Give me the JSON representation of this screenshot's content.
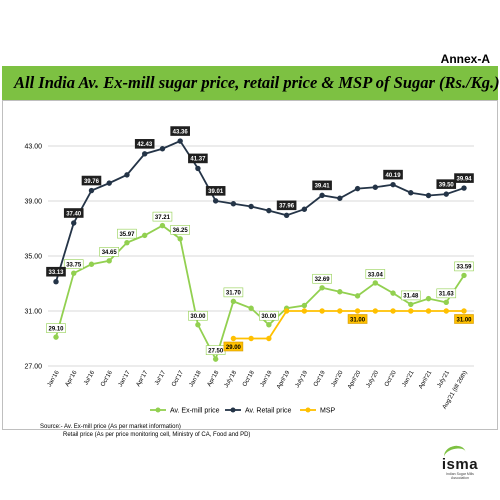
{
  "header": {
    "annex": "Annex-A",
    "title": "All India Av. Ex-mill sugar price, retail price & MSP of Sugar (Rs./Kg.)"
  },
  "chart_data": {
    "type": "line",
    "categories": [
      "Jan'16",
      "Apr'16",
      "Jul'16",
      "Oct'16",
      "Jan'17",
      "Apr'17",
      "Jul'17",
      "Oct'17",
      "Jan'18",
      "Apr'18",
      "July'18",
      "Oct'18",
      "Jan'19",
      "April'19",
      "July'19",
      "Oct'19",
      "Jan'20",
      "April'20",
      "July'20",
      "Oct'20",
      "Jan'21",
      "April'21",
      "July'21",
      "Aug'21 (till 26th)"
    ],
    "ylim": [
      27,
      43
    ],
    "yticks": [
      "27.00",
      "31.00",
      "35.00",
      "39.00",
      "43.00"
    ],
    "grid": true,
    "legend_position": "bottom",
    "series": [
      {
        "name": "Av. Ex-mill price",
        "color": "#92d050",
        "values": [
          29.1,
          33.75,
          34.4,
          34.65,
          35.97,
          36.5,
          37.21,
          36.25,
          30.0,
          27.5,
          31.7,
          31.2,
          30.0,
          31.2,
          31.4,
          32.69,
          32.4,
          32.1,
          33.04,
          32.3,
          31.48,
          31.9,
          31.63,
          33.59
        ]
      },
      {
        "name": "Av. Retail price",
        "color": "#243447",
        "values": [
          33.13,
          37.4,
          39.76,
          40.3,
          40.9,
          42.43,
          42.8,
          43.36,
          41.37,
          39.01,
          38.8,
          38.6,
          38.3,
          37.96,
          38.4,
          39.41,
          39.2,
          39.9,
          40.0,
          40.19,
          39.6,
          39.4,
          39.5,
          39.94
        ]
      },
      {
        "name": "MSP",
        "color": "#ffc000",
        "values": [
          null,
          null,
          null,
          null,
          null,
          null,
          null,
          null,
          null,
          null,
          29.0,
          29.0,
          29.0,
          31.0,
          31.0,
          31.0,
          31.0,
          31.0,
          31.0,
          31.0,
          31.0,
          31.0,
          31.0,
          31.0
        ]
      }
    ],
    "data_labels": [
      {
        "series": 0,
        "index": 0,
        "text": "29.10"
      },
      {
        "series": 0,
        "index": 1,
        "text": "33.75"
      },
      {
        "series": 0,
        "index": 3,
        "text": "34.65"
      },
      {
        "series": 0,
        "index": 4,
        "text": "35.97"
      },
      {
        "series": 0,
        "index": 6,
        "text": "37.21"
      },
      {
        "series": 0,
        "index": 7,
        "text": "36.25"
      },
      {
        "series": 0,
        "index": 8,
        "text": "30.00"
      },
      {
        "series": 0,
        "index": 9,
        "text": "27.50"
      },
      {
        "series": 0,
        "index": 10,
        "text": "31.70"
      },
      {
        "series": 0,
        "index": 12,
        "text": "30.00"
      },
      {
        "series": 0,
        "index": 15,
        "text": "32.69"
      },
      {
        "series": 0,
        "index": 18,
        "text": "33.04"
      },
      {
        "series": 0,
        "index": 20,
        "text": "31.48"
      },
      {
        "series": 0,
        "index": 22,
        "text": "31.63"
      },
      {
        "series": 0,
        "index": 23,
        "text": "33.59"
      },
      {
        "series": 1,
        "index": 0,
        "text": "33.13"
      },
      {
        "series": 1,
        "index": 1,
        "text": "37.40"
      },
      {
        "series": 1,
        "index": 2,
        "text": "39.76"
      },
      {
        "series": 1,
        "index": 5,
        "text": "42.43"
      },
      {
        "series": 1,
        "index": 7,
        "text": "43.36"
      },
      {
        "series": 1,
        "index": 8,
        "text": "41.37"
      },
      {
        "series": 1,
        "index": 9,
        "text": "39.01"
      },
      {
        "series": 1,
        "index": 13,
        "text": "37.96"
      },
      {
        "series": 1,
        "index": 15,
        "text": "39.41"
      },
      {
        "series": 1,
        "index": 19,
        "text": "40.19"
      },
      {
        "series": 1,
        "index": 22,
        "text": "39.50"
      },
      {
        "series": 1,
        "index": 23,
        "text": "39.94"
      },
      {
        "series": 2,
        "index": 10,
        "text": "29.00"
      },
      {
        "series": 2,
        "index": 17,
        "text": "31.00"
      },
      {
        "series": 2,
        "index": 23,
        "text": "31.00"
      }
    ]
  },
  "source": {
    "line1": "Source:- Av. Ex-mill price (As per market information)",
    "line2": "Retail price (As per price monitoring cell, Ministry of CA, Food and PD)"
  },
  "logo": {
    "word": "isma",
    "tagline": "Indian Sugar Mills Association"
  }
}
